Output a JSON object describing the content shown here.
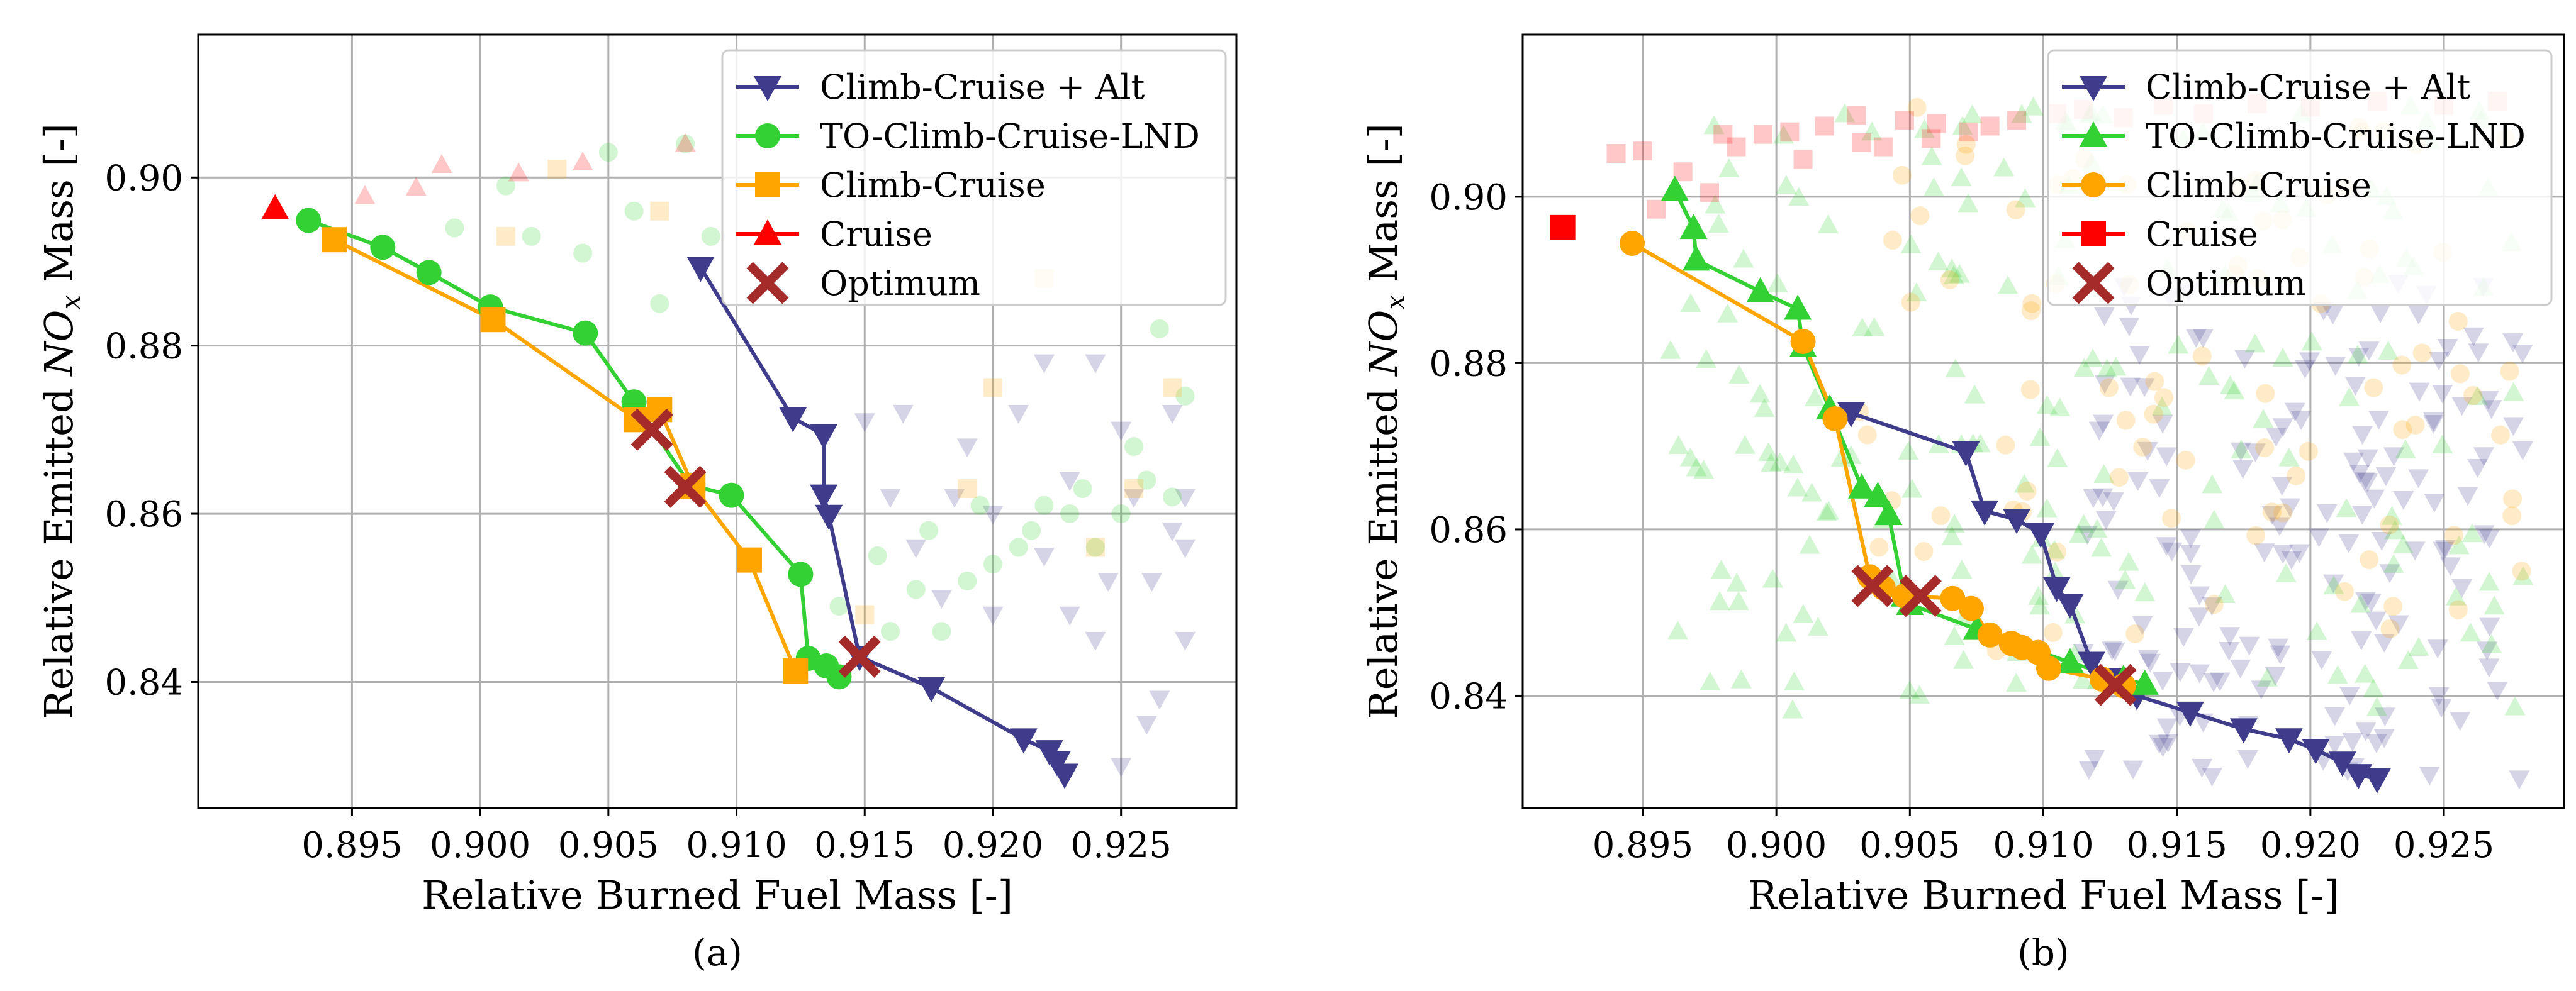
{
  "panel_labels": [
    "(a)",
    "(b)"
  ],
  "colors": {
    "climb_cruise_alt": "#3f3c8c",
    "to_climb_cruise_lnd": "#33d133",
    "climb_cruise": "#ffa500",
    "cruise": "#ff0000",
    "optimum": "#a52a2a"
  },
  "chart_data": [
    {
      "type": "scatter",
      "panel": "(a)",
      "xlabel": "Relative Burned Fuel Mass [-]",
      "ylabel_prefix": "Relative Emitted ",
      "ylabel_math": "NO",
      "ylabel_sub": "x",
      "ylabel_suffix": " Mass [-]",
      "xlim": [
        0.889,
        0.9295
      ],
      "ylim": [
        0.825,
        0.917
      ],
      "xticks": [
        0.895,
        0.9,
        0.905,
        0.91,
        0.915,
        0.92,
        0.925
      ],
      "xtick_labels": [
        "0.895",
        "0.900",
        "0.905",
        "0.910",
        "0.915",
        "0.920",
        "0.925"
      ],
      "yticks": [
        0.84,
        0.86,
        0.88,
        0.9
      ],
      "ytick_labels": [
        "0.84",
        "0.86",
        "0.88",
        "0.90"
      ],
      "grid": true,
      "legend_position": "top-right",
      "series": [
        {
          "name": "Climb-Cruise + Alt",
          "color_key": "climb_cruise_alt",
          "marker": "triangle-down",
          "front": [
            [
              0.9086,
              0.8893
            ],
            [
              0.9122,
              0.8714
            ],
            [
              0.9134,
              0.8694
            ],
            [
              0.9134,
              0.8622
            ],
            [
              0.9136,
              0.8598
            ],
            [
              0.9148,
              0.843
            ],
            [
              0.9176,
              0.8393
            ],
            [
              0.9212,
              0.8332
            ],
            [
              0.9222,
              0.8318
            ],
            [
              0.9225,
              0.8305
            ],
            [
              0.9228,
              0.829
            ]
          ],
          "cloud": [
            [
              0.915,
              0.871
            ],
            [
              0.916,
              0.862
            ],
            [
              0.917,
              0.856
            ],
            [
              0.918,
              0.85
            ],
            [
              0.919,
              0.868
            ],
            [
              0.92,
              0.86
            ],
            [
              0.921,
              0.872
            ],
            [
              0.922,
              0.855
            ],
            [
              0.923,
              0.864
            ],
            [
              0.924,
              0.845
            ],
            [
              0.925,
              0.87
            ],
            [
              0.926,
              0.835
            ],
            [
              0.927,
              0.858
            ],
            [
              0.9275,
              0.845
            ],
            [
              0.925,
              0.83
            ],
            [
              0.9265,
              0.838
            ],
            [
              0.924,
              0.878
            ],
            [
              0.9255,
              0.862
            ],
            [
              0.927,
              0.872
            ],
            [
              0.923,
              0.848
            ],
            [
              0.922,
              0.878
            ],
            [
              0.9245,
              0.852
            ],
            [
              0.9262,
              0.852
            ],
            [
              0.9275,
              0.856
            ],
            [
              0.92,
              0.848
            ],
            [
              0.9185,
              0.862
            ],
            [
              0.9165,
              0.872
            ],
            [
              0.9275,
              0.862
            ]
          ]
        },
        {
          "name": "TO-Climb-Cruise-LND",
          "color_key": "to_climb_cruise_lnd",
          "marker": "circle",
          "front": [
            [
              0.8933,
              0.8949
            ],
            [
              0.8962,
              0.8917
            ],
            [
              0.898,
              0.8887
            ],
            [
              0.9004,
              0.8846
            ],
            [
              0.9041,
              0.8815
            ],
            [
              0.906,
              0.8733
            ],
            [
              0.9082,
              0.8634
            ],
            [
              0.9098,
              0.8622
            ],
            [
              0.9125,
              0.8528
            ],
            [
              0.9128,
              0.8428
            ],
            [
              0.9135,
              0.8419
            ],
            [
              0.914,
              0.8406
            ]
          ],
          "cloud": [
            [
              0.899,
              0.894
            ],
            [
              0.901,
              0.899
            ],
            [
              0.902,
              0.893
            ],
            [
              0.904,
              0.891
            ],
            [
              0.905,
              0.903
            ],
            [
              0.906,
              0.896
            ],
            [
              0.907,
              0.885
            ],
            [
              0.908,
              0.904
            ],
            [
              0.909,
              0.893
            ],
            [
              0.914,
              0.849
            ],
            [
              0.916,
              0.846
            ],
            [
              0.917,
              0.851
            ],
            [
              0.918,
              0.846
            ],
            [
              0.919,
              0.852
            ],
            [
              0.92,
              0.854
            ],
            [
              0.921,
              0.856
            ],
            [
              0.922,
              0.861
            ],
            [
              0.923,
              0.86
            ],
            [
              0.924,
              0.856
            ],
            [
              0.925,
              0.86
            ],
            [
              0.926,
              0.864
            ],
            [
              0.927,
              0.862
            ],
            [
              0.9275,
              0.874
            ],
            [
              0.9265,
              0.882
            ],
            [
              0.9155,
              0.855
            ],
            [
              0.9175,
              0.858
            ],
            [
              0.9195,
              0.861
            ],
            [
              0.9215,
              0.858
            ],
            [
              0.9235,
              0.863
            ],
            [
              0.9255,
              0.868
            ]
          ]
        },
        {
          "name": "Climb-Cruise",
          "color_key": "climb_cruise",
          "marker": "square",
          "front": [
            [
              0.8943,
              0.8926
            ],
            [
              0.9005,
              0.8831
            ],
            [
              0.9061,
              0.8712
            ],
            [
              0.907,
              0.8724
            ],
            [
              0.9083,
              0.8633
            ],
            [
              0.9105,
              0.8545
            ],
            [
              0.9123,
              0.8413
            ]
          ],
          "cloud": [
            [
              0.903,
              0.901
            ],
            [
              0.907,
              0.896
            ],
            [
              0.901,
              0.893
            ],
            [
              0.915,
              0.848
            ],
            [
              0.919,
              0.863
            ],
            [
              0.92,
              0.875
            ],
            [
              0.924,
              0.856
            ],
            [
              0.9255,
              0.863
            ],
            [
              0.927,
              0.875
            ],
            [
              0.922,
              0.888
            ]
          ]
        },
        {
          "name": "Cruise",
          "color_key": "cruise",
          "marker": "triangle-up",
          "front": [
            [
              0.892,
              0.8963
            ]
          ],
          "cloud": [
            [
              0.8955,
              0.8978
            ],
            [
              0.8975,
              0.8988
            ],
            [
              0.8985,
              0.9015
            ],
            [
              0.9015,
              0.9005
            ],
            [
              0.904,
              0.9018
            ],
            [
              0.908,
              0.904
            ]
          ]
        },
        {
          "name": "Optimum",
          "color_key": "optimum",
          "marker": "x",
          "front": [
            [
              0.9067,
              0.87
            ],
            [
              0.908,
              0.8632
            ],
            [
              0.9148,
              0.843
            ]
          ],
          "cloud": []
        }
      ]
    },
    {
      "type": "scatter",
      "panel": "(b)",
      "xlabel": "Relative Burned Fuel Mass [-]",
      "ylabel_prefix": "Relative Emitted ",
      "ylabel_math": "NO",
      "ylabel_sub": "x",
      "ylabel_suffix": " Mass [-]",
      "xlim": [
        0.8905,
        0.9295
      ],
      "ylim": [
        0.8265,
        0.9195
      ],
      "xticks": [
        0.895,
        0.9,
        0.905,
        0.91,
        0.915,
        0.92,
        0.925
      ],
      "xtick_labels": [
        "0.895",
        "0.900",
        "0.905",
        "0.910",
        "0.915",
        "0.920",
        "0.925"
      ],
      "yticks": [
        0.84,
        0.86,
        0.88,
        0.9
      ],
      "ytick_labels": [
        "0.84",
        "0.86",
        "0.88",
        "0.90"
      ],
      "grid": true,
      "legend_position": "top-right",
      "series": [
        {
          "name": "Climb-Cruise + Alt",
          "color_key": "climb_cruise_alt",
          "marker": "triangle-down",
          "front": [
            [
              0.9028,
              0.874
            ],
            [
              0.9071,
              0.8693
            ],
            [
              0.9078,
              0.8622
            ],
            [
              0.909,
              0.8612
            ],
            [
              0.9099,
              0.8595
            ],
            [
              0.9105,
              0.853
            ],
            [
              0.911,
              0.851
            ],
            [
              0.9118,
              0.844
            ],
            [
              0.9125,
              0.842
            ],
            [
              0.9135,
              0.84
            ],
            [
              0.9155,
              0.838
            ],
            [
              0.9175,
              0.836
            ],
            [
              0.9192,
              0.8348
            ],
            [
              0.9202,
              0.8335
            ],
            [
              0.9212,
              0.832
            ],
            [
              0.9218,
              0.8305
            ],
            [
              0.9225,
              0.83
            ]
          ],
          "cloud_region": {
            "x": [
              0.9115,
              0.928
            ],
            "y": [
              0.83,
              0.89
            ],
            "count": 170
          }
        },
        {
          "name": "TO-Climb-Cruise-LND",
          "color_key": "to_climb_cruise_lnd",
          "marker": "triangle-up",
          "front": [
            [
              0.8962,
              0.9008
            ],
            [
              0.8969,
              0.8962
            ],
            [
              0.897,
              0.8924
            ],
            [
              0.8994,
              0.8886
            ],
            [
              0.9008,
              0.8865
            ],
            [
              0.901,
              0.882
            ],
            [
              0.902,
              0.8745
            ],
            [
              0.9032,
              0.865
            ],
            [
              0.9038,
              0.864
            ],
            [
              0.9042,
              0.8618
            ],
            [
              0.9048,
              0.852
            ],
            [
              0.905,
              0.851
            ],
            [
              0.9075,
              0.848
            ],
            [
              0.911,
              0.844
            ],
            [
              0.913,
              0.842
            ],
            [
              0.9138,
              0.8414
            ]
          ],
          "cloud_region": {
            "x": [
              0.896,
              0.928
            ],
            "y": [
              0.838,
              0.911
            ],
            "count": 200
          }
        },
        {
          "name": "Climb-Cruise",
          "color_key": "climb_cruise",
          "marker": "circle",
          "front": [
            [
              0.8946,
              0.8944
            ],
            [
              0.901,
              0.8826
            ],
            [
              0.9022,
              0.8733
            ],
            [
              0.9035,
              0.8543
            ],
            [
              0.904,
              0.853
            ],
            [
              0.9048,
              0.852
            ],
            [
              0.9066,
              0.8517
            ],
            [
              0.9073,
              0.8505
            ],
            [
              0.908,
              0.8473
            ],
            [
              0.9088,
              0.8463
            ],
            [
              0.9092,
              0.8458
            ],
            [
              0.9098,
              0.8452
            ],
            [
              0.9102,
              0.8433
            ],
            [
              0.9122,
              0.842
            ],
            [
              0.913,
              0.8412
            ]
          ],
          "cloud_region": {
            "x": [
              0.903,
              0.928
            ],
            "y": [
              0.845,
              0.911
            ],
            "count": 90
          }
        },
        {
          "name": "Cruise",
          "color_key": "cruise",
          "marker": "square",
          "front": [
            [
              0.892,
              0.8963
            ]
          ],
          "cloud": [
            [
              0.894,
              0.9052
            ],
            [
              0.895,
              0.9055
            ],
            [
              0.8955,
              0.8985
            ],
            [
              0.8965,
              0.903
            ],
            [
              0.8975,
              0.9005
            ],
            [
              0.898,
              0.9075
            ],
            [
              0.8985,
              0.906
            ],
            [
              0.8995,
              0.9075
            ],
            [
              0.9005,
              0.9078
            ],
            [
              0.901,
              0.9045
            ],
            [
              0.9018,
              0.9085
            ],
            [
              0.903,
              0.9098
            ],
            [
              0.904,
              0.906
            ],
            [
              0.9048,
              0.9092
            ],
            [
              0.906,
              0.9088
            ],
            [
              0.9072,
              0.9078
            ],
            [
              0.908,
              0.9085
            ],
            [
              0.909,
              0.9092
            ],
            [
              0.9105,
              0.91
            ],
            [
              0.9115,
              0.9105
            ],
            [
              0.913,
              0.9095
            ],
            [
              0.9145,
              0.911
            ],
            [
              0.916,
              0.91
            ],
            [
              0.918,
              0.9112
            ],
            [
              0.92,
              0.9108
            ],
            [
              0.9225,
              0.9115
            ],
            [
              0.925,
              0.911
            ],
            [
              0.927,
              0.9115
            ],
            [
              0.9032,
              0.9065
            ],
            [
              0.9058,
              0.907
            ]
          ]
        },
        {
          "name": "Optimum",
          "color_key": "optimum",
          "marker": "x",
          "front": [
            [
              0.9036,
              0.8532
            ],
            [
              0.9054,
              0.852
            ],
            [
              0.9127,
              0.8413
            ]
          ],
          "cloud": []
        }
      ]
    }
  ]
}
